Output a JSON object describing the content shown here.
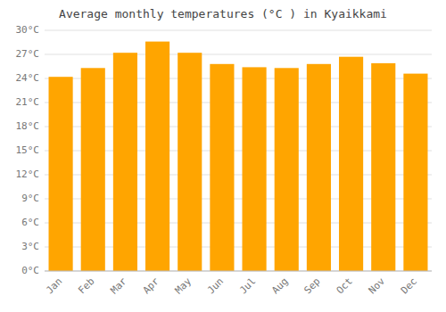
{
  "chart_data": {
    "type": "bar",
    "title": "Average monthly temperatures (°C ) in Kyaikkami",
    "categories": [
      "Jan",
      "Feb",
      "Mar",
      "Apr",
      "May",
      "Jun",
      "Jul",
      "Aug",
      "Sep",
      "Oct",
      "Nov",
      "Dec"
    ],
    "values": [
      24.2,
      25.3,
      27.2,
      28.6,
      27.2,
      25.8,
      25.4,
      25.3,
      25.8,
      26.7,
      25.9,
      24.6
    ],
    "color": "#FFA500",
    "ylim": [
      0,
      30
    ],
    "yticks": [
      {
        "value": 0,
        "label": "0°C"
      },
      {
        "value": 3,
        "label": "3°C"
      },
      {
        "value": 6,
        "label": "6°C"
      },
      {
        "value": 9,
        "label": "9°C"
      },
      {
        "value": 12,
        "label": "12°C"
      },
      {
        "value": 15,
        "label": "15°C"
      },
      {
        "value": 18,
        "label": "18°C"
      },
      {
        "value": 21,
        "label": "21°C"
      },
      {
        "value": 24,
        "label": "24°C"
      },
      {
        "value": 27,
        "label": "27°C"
      },
      {
        "value": 30,
        "label": "30°C"
      }
    ],
    "grid": true
  }
}
